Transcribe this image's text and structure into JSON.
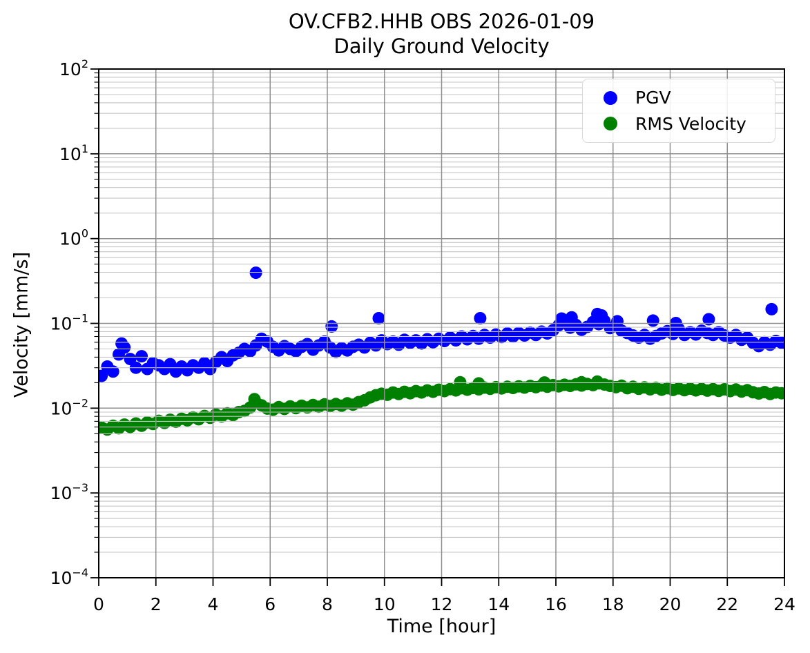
{
  "figure": {
    "title_line1": "OV.CFB2.HHB OBS 2026-01-09",
    "title_line2": "Daily Ground Velocity",
    "xlabel": "Time [hour]",
    "ylabel": "Velocity [mm/s]"
  },
  "legend": {
    "items": [
      {
        "label": "PGV",
        "color": "#0000ff",
        "marker": "circle-icon"
      },
      {
        "label": "RMS Velocity",
        "color": "#008000",
        "marker": "circle-icon"
      }
    ]
  },
  "chart_data": {
    "type": "scatter",
    "title": "OV.CFB2.HHB OBS 2026-01-09",
    "subtitle": "Daily Ground Velocity",
    "xlabel": "Time [hour]",
    "ylabel": "Velocity [mm/s]",
    "xlim": [
      0,
      24
    ],
    "ylim": [
      0.0001,
      100
    ],
    "yscale": "log",
    "xscale": "linear",
    "grid": true,
    "grid_over_points": true,
    "legend_position": "upper right",
    "xticks": [
      0,
      2,
      4,
      6,
      8,
      10,
      12,
      14,
      16,
      18,
      20,
      22,
      24
    ],
    "ytick_exponents": [
      2,
      1,
      0,
      -1,
      -2,
      -3,
      -4
    ],
    "marker_size_px": 9,
    "series": [
      {
        "name": "PGV",
        "color": "#0000ff",
        "x": [
          0.1,
          0.3,
          0.5,
          0.7,
          0.9,
          1.1,
          1.3,
          1.5,
          1.7,
          1.9,
          2.1,
          2.3,
          2.5,
          2.7,
          2.9,
          3.1,
          3.3,
          3.5,
          3.7,
          3.9,
          4.1,
          4.3,
          4.5,
          4.7,
          4.9,
          5.1,
          5.3,
          5.5,
          5.7,
          5.9,
          6.1,
          6.3,
          6.5,
          6.7,
          6.9,
          7.1,
          7.3,
          7.5,
          7.7,
          7.9,
          8.1,
          8.3,
          8.5,
          8.7,
          8.9,
          9.1,
          9.3,
          9.5,
          9.7,
          9.9,
          10.1,
          10.3,
          10.5,
          10.7,
          10.9,
          11.1,
          11.3,
          11.5,
          11.7,
          11.9,
          12.1,
          12.3,
          12.5,
          12.7,
          12.9,
          13.1,
          13.3,
          13.5,
          13.7,
          13.9,
          14.1,
          14.3,
          14.5,
          14.7,
          14.9,
          15.1,
          15.3,
          15.5,
          15.7,
          15.9,
          16.1,
          16.3,
          16.5,
          16.7,
          16.9,
          17.1,
          17.3,
          17.5,
          17.7,
          17.9,
          18.1,
          18.3,
          18.5,
          18.7,
          18.9,
          19.1,
          19.3,
          19.5,
          19.7,
          19.9,
          20.1,
          20.3,
          20.5,
          20.7,
          20.9,
          21.1,
          21.3,
          21.5,
          21.7,
          21.9,
          22.1,
          22.3,
          22.5,
          22.7,
          22.9,
          23.1,
          23.3,
          23.5,
          23.7,
          23.9,
          0.8,
          5.5,
          8.15,
          9.8,
          13.35,
          16.2,
          16.55,
          17.45,
          17.6,
          18.15,
          19.4,
          20.2,
          21.35,
          23.55
        ],
        "y": [
          0.024,
          0.031,
          0.027,
          0.043,
          0.052,
          0.038,
          0.03,
          0.041,
          0.029,
          0.034,
          0.032,
          0.029,
          0.033,
          0.027,
          0.031,
          0.028,
          0.032,
          0.03,
          0.034,
          0.029,
          0.035,
          0.04,
          0.036,
          0.042,
          0.045,
          0.05,
          0.047,
          0.055,
          0.066,
          0.061,
          0.053,
          0.048,
          0.054,
          0.05,
          0.047,
          0.053,
          0.057,
          0.049,
          0.055,
          0.061,
          0.052,
          0.046,
          0.051,
          0.048,
          0.053,
          0.056,
          0.052,
          0.059,
          0.055,
          0.063,
          0.057,
          0.061,
          0.056,
          0.064,
          0.059,
          0.063,
          0.058,
          0.065,
          0.06,
          0.066,
          0.062,
          0.068,
          0.063,
          0.07,
          0.065,
          0.071,
          0.066,
          0.073,
          0.068,
          0.074,
          0.069,
          0.076,
          0.07,
          0.077,
          0.072,
          0.078,
          0.073,
          0.08,
          0.076,
          0.083,
          0.095,
          0.102,
          0.089,
          0.096,
          0.084,
          0.091,
          0.104,
          0.098,
          0.107,
          0.088,
          0.095,
          0.082,
          0.077,
          0.072,
          0.068,
          0.073,
          0.066,
          0.071,
          0.076,
          0.081,
          0.075,
          0.086,
          0.073,
          0.079,
          0.074,
          0.082,
          0.077,
          0.073,
          0.079,
          0.072,
          0.068,
          0.073,
          0.064,
          0.068,
          0.059,
          0.054,
          0.06,
          0.056,
          0.062,
          0.059,
          0.058,
          0.396,
          0.092,
          0.115,
          0.115,
          0.114,
          0.118,
          0.129,
          0.124,
          0.106,
          0.108,
          0.101,
          0.112,
          0.147
        ]
      },
      {
        "name": "RMS Velocity",
        "color": "#008000",
        "x": [
          0.1,
          0.3,
          0.5,
          0.7,
          0.9,
          1.1,
          1.3,
          1.5,
          1.7,
          1.9,
          2.1,
          2.3,
          2.5,
          2.7,
          2.9,
          3.1,
          3.3,
          3.5,
          3.7,
          3.9,
          4.1,
          4.3,
          4.5,
          4.7,
          4.9,
          5.1,
          5.3,
          5.5,
          5.7,
          5.9,
          6.1,
          6.3,
          6.5,
          6.7,
          6.9,
          7.1,
          7.3,
          7.5,
          7.7,
          7.9,
          8.1,
          8.3,
          8.5,
          8.7,
          8.9,
          9.1,
          9.3,
          9.5,
          9.7,
          9.9,
          10.1,
          10.3,
          10.5,
          10.7,
          10.9,
          11.1,
          11.3,
          11.5,
          11.7,
          11.9,
          12.1,
          12.3,
          12.5,
          12.7,
          12.9,
          13.1,
          13.3,
          13.5,
          13.7,
          13.9,
          14.1,
          14.3,
          14.5,
          14.7,
          14.9,
          15.1,
          15.3,
          15.5,
          15.7,
          15.9,
          16.1,
          16.3,
          16.5,
          16.7,
          16.9,
          17.1,
          17.3,
          17.5,
          17.7,
          17.9,
          18.1,
          18.3,
          18.5,
          18.7,
          18.9,
          19.1,
          19.3,
          19.5,
          19.7,
          19.9,
          20.1,
          20.3,
          20.5,
          20.7,
          20.9,
          21.1,
          21.3,
          21.5,
          21.7,
          21.9,
          22.1,
          22.3,
          22.5,
          22.7,
          22.9,
          23.1,
          23.3,
          23.5,
          23.7,
          23.9,
          5.45,
          12.65,
          13.3,
          15.6,
          16.9,
          17.45
        ],
        "y": [
          0.0059,
          0.0056,
          0.0062,
          0.0058,
          0.0064,
          0.006,
          0.0066,
          0.0062,
          0.0068,
          0.0065,
          0.0071,
          0.0067,
          0.0073,
          0.0069,
          0.0075,
          0.0072,
          0.0078,
          0.0074,
          0.0081,
          0.0077,
          0.0084,
          0.008,
          0.0087,
          0.0083,
          0.009,
          0.0093,
          0.0102,
          0.0117,
          0.0108,
          0.0099,
          0.0096,
          0.0103,
          0.0098,
          0.0105,
          0.01,
          0.0107,
          0.0102,
          0.0109,
          0.0104,
          0.0111,
          0.0106,
          0.0112,
          0.0107,
          0.0114,
          0.011,
          0.0118,
          0.0124,
          0.0134,
          0.0142,
          0.0148,
          0.0144,
          0.0153,
          0.0147,
          0.0156,
          0.015,
          0.0159,
          0.0153,
          0.0162,
          0.0156,
          0.0165,
          0.0159,
          0.0168,
          0.0162,
          0.0172,
          0.0165,
          0.0173,
          0.0167,
          0.0175,
          0.0169,
          0.0177,
          0.0171,
          0.0179,
          0.0173,
          0.0181,
          0.0175,
          0.0183,
          0.0177,
          0.0185,
          0.0179,
          0.0187,
          0.0181,
          0.0189,
          0.0183,
          0.0191,
          0.0185,
          0.0193,
          0.0187,
          0.0196,
          0.019,
          0.0183,
          0.0177,
          0.0184,
          0.0172,
          0.0179,
          0.0169,
          0.0176,
          0.0167,
          0.0174,
          0.0165,
          0.0172,
          0.0164,
          0.0171,
          0.0163,
          0.017,
          0.0162,
          0.0169,
          0.0161,
          0.0168,
          0.016,
          0.0167,
          0.0159,
          0.0166,
          0.0157,
          0.0163,
          0.0154,
          0.0149,
          0.0155,
          0.0147,
          0.0153,
          0.015,
          0.0128,
          0.0202,
          0.0196,
          0.0201,
          0.0202,
          0.0206
        ]
      }
    ]
  }
}
